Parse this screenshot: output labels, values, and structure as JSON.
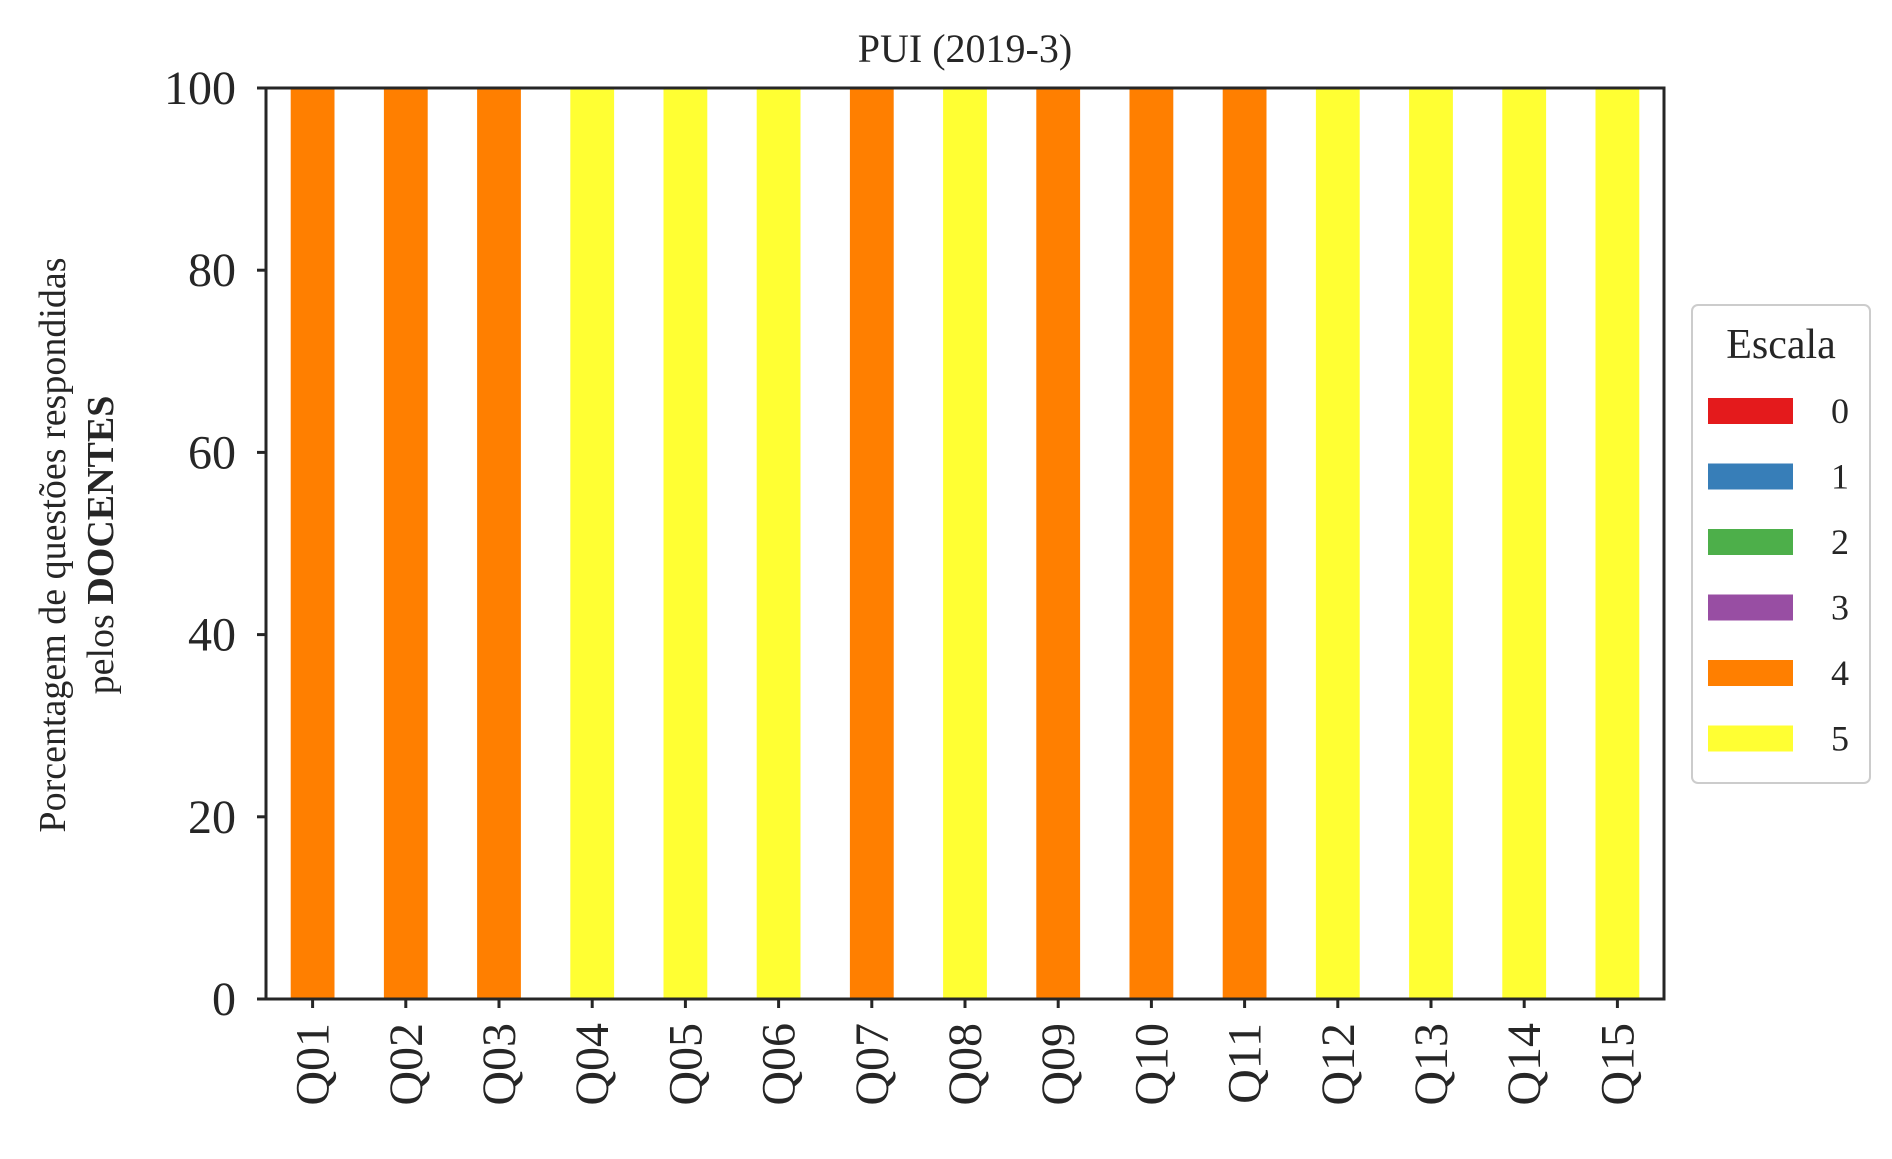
{
  "chart_data": {
    "type": "bar",
    "stacked": true,
    "title": "PUI (2019-3)",
    "ylabel_line1": "Porcentagem de questões respondidas",
    "ylabel_line2_prefix": "pelos ",
    "ylabel_line2_bold": "DOCENTES",
    "xlabel": "",
    "ylim": [
      0,
      100
    ],
    "yticks": [
      0,
      20,
      40,
      60,
      80,
      100
    ],
    "categories": [
      "Q01",
      "Q02",
      "Q03",
      "Q04",
      "Q05",
      "Q06",
      "Q07",
      "Q08",
      "Q09",
      "Q10",
      "Q11",
      "Q12",
      "Q13",
      "Q14",
      "Q15"
    ],
    "series": [
      {
        "name": "0",
        "color": "#e41a1c",
        "values": [
          0,
          0,
          0,
          0,
          0,
          0,
          0,
          0,
          0,
          0,
          0,
          0,
          0,
          0,
          0
        ]
      },
      {
        "name": "1",
        "color": "#377eb8",
        "values": [
          0,
          0,
          0,
          0,
          0,
          0,
          0,
          0,
          0,
          0,
          0,
          0,
          0,
          0,
          0
        ]
      },
      {
        "name": "2",
        "color": "#4daf4a",
        "values": [
          0,
          0,
          0,
          0,
          0,
          0,
          0,
          0,
          0,
          0,
          0,
          0,
          0,
          0,
          0
        ]
      },
      {
        "name": "3",
        "color": "#984ea3",
        "values": [
          0,
          0,
          0,
          0,
          0,
          0,
          0,
          0,
          0,
          0,
          0,
          0,
          0,
          0,
          0
        ]
      },
      {
        "name": "4",
        "color": "#ff7f00",
        "values": [
          100,
          100,
          100,
          0,
          0,
          0,
          100,
          0,
          100,
          100,
          100,
          0,
          0,
          0,
          0
        ]
      },
      {
        "name": "5",
        "color": "#ffff33",
        "values": [
          0,
          0,
          0,
          100,
          100,
          100,
          0,
          100,
          0,
          0,
          0,
          100,
          100,
          100,
          100
        ]
      }
    ],
    "legend": {
      "title": "Escala",
      "placement": "center-right, outside plot"
    },
    "grid": false
  }
}
